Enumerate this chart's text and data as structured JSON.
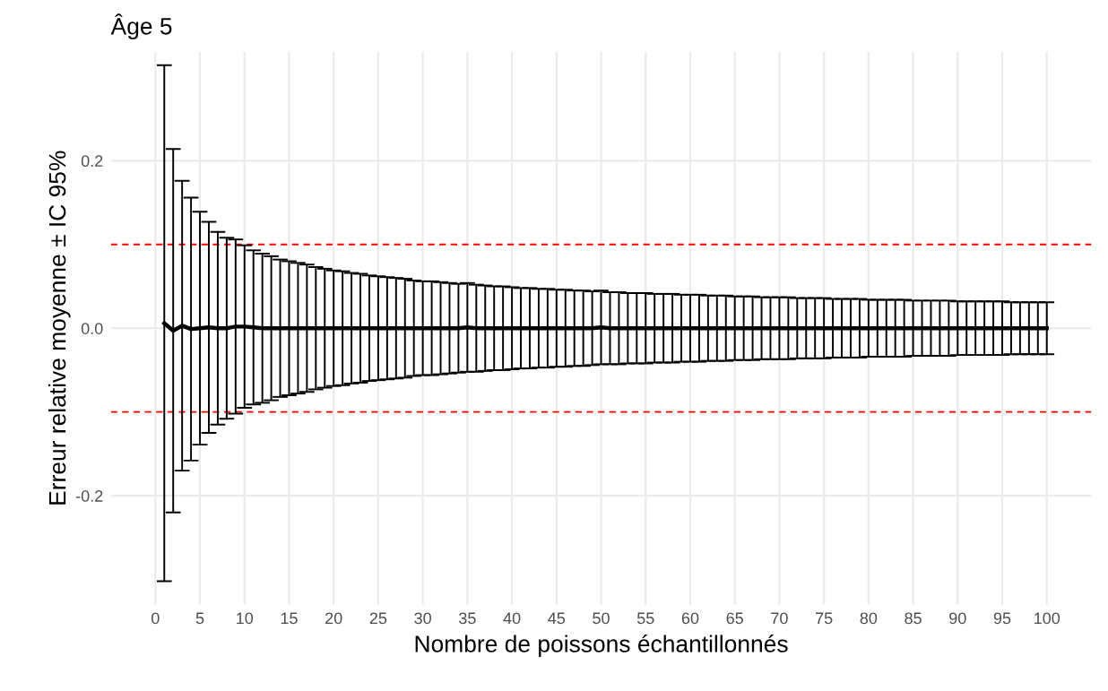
{
  "chart_data": {
    "type": "line",
    "title": "Âge 5",
    "xlabel": "Nombre de poissons échantillonnés",
    "ylabel": "Erreur relative moyenne ± IC 95%",
    "x": [
      1,
      2,
      3,
      4,
      5,
      6,
      7,
      8,
      9,
      10,
      11,
      12,
      13,
      14,
      15,
      16,
      17,
      18,
      19,
      20,
      21,
      22,
      23,
      24,
      25,
      26,
      27,
      28,
      29,
      30,
      31,
      32,
      33,
      34,
      35,
      36,
      37,
      38,
      39,
      40,
      41,
      42,
      43,
      44,
      45,
      46,
      47,
      48,
      49,
      50,
      51,
      52,
      53,
      54,
      55,
      56,
      57,
      58,
      59,
      60,
      61,
      62,
      63,
      64,
      65,
      66,
      67,
      68,
      69,
      70,
      71,
      72,
      73,
      74,
      75,
      76,
      77,
      78,
      79,
      80,
      81,
      82,
      83,
      84,
      85,
      86,
      87,
      88,
      89,
      90,
      91,
      92,
      93,
      94,
      95,
      96,
      97,
      98,
      99,
      100
    ],
    "series": [
      {
        "color": "#000000",
        "values": [
          0.006,
          -0.003,
          0.003,
          -0.001,
          0.0,
          0.001,
          0.0,
          0.0,
          0.002,
          0.002,
          0.001,
          0.0,
          0.0,
          0.0,
          0.0,
          0.0,
          0.0,
          0.0,
          0.0,
          0.0,
          0.0,
          0.0,
          0.0,
          0.0,
          0.0,
          0.0,
          0.0,
          0.0,
          0.0,
          0.0,
          0.0,
          0.0,
          0.0,
          0.0,
          0.001,
          0.0,
          0.0,
          0.0,
          0.0,
          0.0,
          0.0,
          0.0,
          0.0,
          0.0,
          0.0,
          0.0,
          0.0,
          0.0,
          0.0,
          0.001,
          0.0,
          0.0,
          0.0,
          0.0,
          0.0,
          0.0,
          0.0,
          0.0,
          0.0,
          0.0,
          0.0,
          0.0,
          0.0,
          0.0,
          0.0,
          0.0,
          0.0,
          0.0,
          0.0,
          0.0,
          0.0,
          0.0,
          0.0,
          0.0,
          0.0,
          0.0,
          0.0,
          0.0,
          0.0,
          0.0,
          0.0,
          0.0,
          0.0,
          0.0,
          0.0,
          0.0,
          0.0,
          0.0,
          0.0,
          0.0,
          0.0,
          0.0,
          0.0,
          0.0,
          0.0,
          0.0,
          0.0,
          0.0,
          0.0,
          0.0
        ],
        "errors": [
          0.308,
          0.217,
          0.173,
          0.157,
          0.139,
          0.126,
          0.115,
          0.108,
          0.104,
          0.097,
          0.092,
          0.089,
          0.086,
          0.082,
          0.08,
          0.078,
          0.076,
          0.073,
          0.071,
          0.069,
          0.068,
          0.066,
          0.065,
          0.063,
          0.062,
          0.061,
          0.06,
          0.059,
          0.057,
          0.056,
          0.056,
          0.055,
          0.054,
          0.053,
          0.053,
          0.052,
          0.051,
          0.05,
          0.05,
          0.049,
          0.048,
          0.048,
          0.047,
          0.047,
          0.046,
          0.046,
          0.045,
          0.045,
          0.044,
          0.044,
          0.043,
          0.043,
          0.042,
          0.042,
          0.042,
          0.041,
          0.041,
          0.041,
          0.04,
          0.04,
          0.04,
          0.039,
          0.039,
          0.039,
          0.038,
          0.038,
          0.038,
          0.037,
          0.037,
          0.037,
          0.037,
          0.036,
          0.036,
          0.036,
          0.036,
          0.035,
          0.035,
          0.035,
          0.035,
          0.034,
          0.034,
          0.034,
          0.034,
          0.034,
          0.033,
          0.033,
          0.033,
          0.033,
          0.033,
          0.032,
          0.032,
          0.032,
          0.032,
          0.032,
          0.032,
          0.031,
          0.031,
          0.031,
          0.031,
          0.031
        ]
      }
    ],
    "xlim": [
      -5,
      105
    ],
    "xticks": [
      0,
      5,
      10,
      15,
      20,
      25,
      30,
      35,
      40,
      45,
      50,
      55,
      60,
      65,
      70,
      75,
      80,
      85,
      90,
      95,
      100
    ],
    "ylim": [
      -0.33,
      0.33
    ],
    "yticks": [
      {
        "value": -0.2,
        "label": "-0.2"
      },
      {
        "value": 0,
        "label": "0.0"
      },
      {
        "value": 0.2,
        "label": "0.2"
      }
    ],
    "ref_lines": [
      {
        "axis": "y",
        "value": 0.1,
        "color": "#ff0000",
        "line_style": "dashed"
      },
      {
        "axis": "y",
        "value": -0.1,
        "color": "#ff0000",
        "line_style": "dashed"
      }
    ],
    "grid": true,
    "marker": "none",
    "line_style": "solid"
  }
}
